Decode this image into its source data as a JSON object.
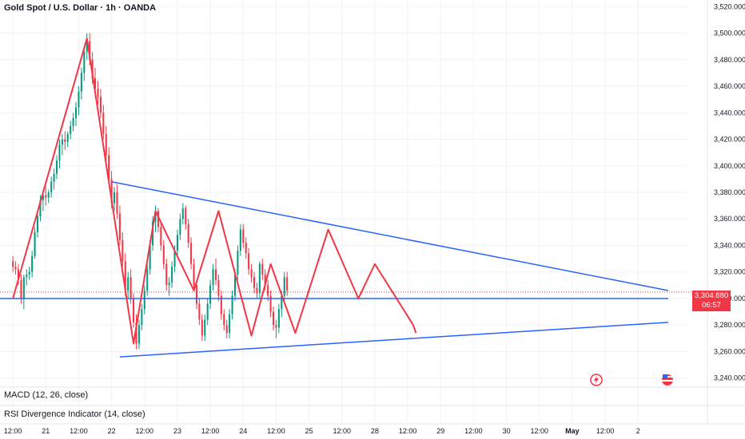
{
  "title": "Gold Spot / U.S. Dollar · 1h · OANDA",
  "indicators": [
    {
      "label": "MACD (12, 26, close)"
    },
    {
      "label": "RSI Divergence Indicator (14, close)"
    }
  ],
  "price_badge": {
    "price": "3,304.880",
    "countdown": "06:57",
    "color": "#f23645"
  },
  "colors": {
    "up": "#089981",
    "down": "#f23645",
    "pattern": "#f23645",
    "trendline": "#2962ff",
    "grid": "#f0f3fa"
  },
  "icons": [
    "flash-event-icon",
    "us-flag-icon"
  ],
  "chart_data": {
    "type": "candlestick",
    "title": "Gold Spot / U.S. Dollar · 1h · OANDA",
    "y_ticks": [
      "3,520.000",
      "3,500.000",
      "3,480.000",
      "3,460.000",
      "3,440.000",
      "3,420.000",
      "3,400.000",
      "3,380.000",
      "3,360.000",
      "3,340.000",
      "3,320.000",
      "3,300.000",
      "3,280.000",
      "3,260.000",
      "3,240.000"
    ],
    "y_tick_values": [
      3520,
      3500,
      3480,
      3460,
      3440,
      3420,
      3400,
      3380,
      3360,
      3340,
      3320,
      3300,
      3280,
      3260,
      3240
    ],
    "ylim": [
      3235,
      3525
    ],
    "x_ticks": [
      "12:00",
      "21",
      "12:00",
      "22",
      "12:00",
      "23",
      "12:00",
      "24",
      "12:00",
      "25",
      "12:00",
      "28",
      "12:00",
      "29",
      "12:00",
      "30",
      "12:00",
      "May",
      "12:00",
      "2"
    ],
    "x_tick_values": [
      0,
      12,
      24,
      36,
      48,
      60,
      72,
      84,
      96,
      108,
      120,
      132,
      144,
      156,
      168,
      180,
      192,
      204,
      216,
      228
    ],
    "xlim": [
      -4.7,
      246
    ],
    "x_unit": "hourly bars (session index)",
    "last_price": 3304.88,
    "ohlc": [
      [
        3328,
        3332,
        3320,
        3324
      ],
      [
        3324,
        3328,
        3318,
        3322
      ],
      [
        3322,
        3326,
        3310,
        3314
      ],
      [
        3314,
        3318,
        3296,
        3300
      ],
      [
        3300,
        3318,
        3292,
        3316
      ],
      [
        3316,
        3322,
        3310,
        3318
      ],
      [
        3318,
        3324,
        3314,
        3320
      ],
      [
        3320,
        3336,
        3316,
        3332
      ],
      [
        3332,
        3354,
        3330,
        3350
      ],
      [
        3350,
        3366,
        3346,
        3362
      ],
      [
        3362,
        3378,
        3358,
        3374
      ],
      [
        3374,
        3382,
        3366,
        3378
      ],
      [
        3378,
        3384,
        3370,
        3376
      ],
      [
        3376,
        3382,
        3372,
        3380
      ],
      [
        3380,
        3392,
        3376,
        3388
      ],
      [
        3388,
        3398,
        3382,
        3394
      ],
      [
        3394,
        3408,
        3390,
        3404
      ],
      [
        3404,
        3420,
        3398,
        3416
      ],
      [
        3416,
        3424,
        3408,
        3420
      ],
      [
        3420,
        3426,
        3412,
        3418
      ],
      [
        3418,
        3426,
        3414,
        3424
      ],
      [
        3424,
        3434,
        3420,
        3430
      ],
      [
        3430,
        3440,
        3426,
        3436
      ],
      [
        3436,
        3448,
        3430,
        3444
      ],
      [
        3444,
        3460,
        3438,
        3456
      ],
      [
        3456,
        3474,
        3450,
        3470
      ],
      [
        3470,
        3490,
        3464,
        3486
      ],
      [
        3486,
        3500,
        3480,
        3494
      ],
      [
        3494,
        3500,
        3476,
        3480
      ],
      [
        3480,
        3486,
        3462,
        3466
      ],
      [
        3466,
        3474,
        3452,
        3458
      ],
      [
        3458,
        3464,
        3446,
        3452
      ],
      [
        3452,
        3458,
        3436,
        3440
      ],
      [
        3440,
        3446,
        3420,
        3424
      ],
      [
        3424,
        3430,
        3404,
        3408
      ],
      [
        3408,
        3414,
        3386,
        3390
      ],
      [
        3390,
        3396,
        3368,
        3372
      ],
      [
        3372,
        3384,
        3366,
        3380
      ],
      [
        3380,
        3386,
        3360,
        3364
      ],
      [
        3364,
        3370,
        3340,
        3344
      ],
      [
        3344,
        3350,
        3324,
        3328
      ],
      [
        3328,
        3334,
        3302,
        3306
      ],
      [
        3306,
        3320,
        3300,
        3316
      ],
      [
        3316,
        3322,
        3296,
        3300
      ],
      [
        3300,
        3304,
        3278,
        3282
      ],
      [
        3282,
        3288,
        3262,
        3266
      ],
      [
        3266,
        3284,
        3262,
        3280
      ],
      [
        3280,
        3296,
        3276,
        3292
      ],
      [
        3292,
        3310,
        3288,
        3306
      ],
      [
        3306,
        3326,
        3302,
        3322
      ],
      [
        3322,
        3344,
        3318,
        3340
      ],
      [
        3340,
        3362,
        3336,
        3358
      ],
      [
        3358,
        3370,
        3350,
        3366
      ],
      [
        3366,
        3368,
        3350,
        3354
      ],
      [
        3354,
        3358,
        3336,
        3340
      ],
      [
        3340,
        3344,
        3322,
        3326
      ],
      [
        3326,
        3330,
        3306,
        3310
      ],
      [
        3310,
        3316,
        3302,
        3312
      ],
      [
        3312,
        3328,
        3308,
        3324
      ],
      [
        3324,
        3340,
        3320,
        3336
      ],
      [
        3336,
        3352,
        3332,
        3348
      ],
      [
        3348,
        3364,
        3344,
        3360
      ],
      [
        3360,
        3372,
        3356,
        3368
      ],
      [
        3368,
        3370,
        3352,
        3356
      ],
      [
        3356,
        3360,
        3338,
        3342
      ],
      [
        3342,
        3346,
        3322,
        3326
      ],
      [
        3326,
        3330,
        3306,
        3310
      ],
      [
        3310,
        3312,
        3292,
        3296
      ],
      [
        3296,
        3300,
        3280,
        3284
      ],
      [
        3284,
        3288,
        3268,
        3272
      ],
      [
        3272,
        3288,
        3268,
        3284
      ],
      [
        3284,
        3300,
        3280,
        3296
      ],
      [
        3296,
        3314,
        3292,
        3310
      ],
      [
        3310,
        3326,
        3306,
        3322
      ],
      [
        3322,
        3330,
        3310,
        3314
      ],
      [
        3314,
        3318,
        3298,
        3302
      ],
      [
        3302,
        3306,
        3284,
        3288
      ],
      [
        3288,
        3292,
        3276,
        3280
      ],
      [
        3280,
        3284,
        3270,
        3274
      ],
      [
        3274,
        3292,
        3270,
        3288
      ],
      [
        3288,
        3306,
        3284,
        3302
      ],
      [
        3302,
        3322,
        3298,
        3318
      ],
      [
        3318,
        3340,
        3314,
        3336
      ],
      [
        3336,
        3356,
        3332,
        3352
      ],
      [
        3352,
        3356,
        3338,
        3342
      ],
      [
        3342,
        3346,
        3330,
        3334
      ],
      [
        3334,
        3338,
        3318,
        3322
      ],
      [
        3322,
        3326,
        3312,
        3316
      ],
      [
        3316,
        3320,
        3304,
        3308
      ],
      [
        3308,
        3312,
        3300,
        3304
      ],
      [
        3304,
        3328,
        3300,
        3326
      ],
      [
        3326,
        3330,
        3314,
        3318
      ],
      [
        3318,
        3322,
        3306,
        3310
      ],
      [
        3310,
        3314,
        3298,
        3302
      ],
      [
        3302,
        3306,
        3286,
        3290
      ],
      [
        3290,
        3294,
        3276,
        3280
      ],
      [
        3280,
        3284,
        3270,
        3278
      ],
      [
        3278,
        3296,
        3274,
        3292
      ],
      [
        3292,
        3306,
        3286,
        3302
      ],
      [
        3302,
        3320,
        3298,
        3316
      ],
      [
        3316,
        3320,
        3302,
        3306
      ]
    ],
    "zigzag_pattern": {
      "color": "#f23645",
      "points": [
        [
          0,
          3300
        ],
        [
          27,
          3496
        ],
        [
          44,
          3266
        ],
        [
          52,
          3366
        ],
        [
          66,
          3306
        ],
        [
          75,
          3366
        ],
        [
          87,
          3272
        ],
        [
          94,
          3326
        ],
        [
          103,
          3274
        ],
        [
          115,
          3352
        ],
        [
          126,
          3300
        ],
        [
          132,
          3326
        ],
        [
          146,
          3280
        ],
        [
          147,
          3274
        ]
      ]
    },
    "trendlines": [
      {
        "name": "upper",
        "color": "#2962ff",
        "points": [
          [
            36,
            3388
          ],
          [
            239,
            3306
          ]
        ]
      },
      {
        "name": "lower",
        "color": "#2962ff",
        "points": [
          [
            39,
            3256
          ],
          [
            239,
            3282
          ]
        ]
      },
      {
        "name": "horizontal",
        "color": "#2962ff",
        "points": [
          [
            -4.7,
            3300
          ],
          [
            239,
            3300
          ]
        ]
      }
    ]
  }
}
